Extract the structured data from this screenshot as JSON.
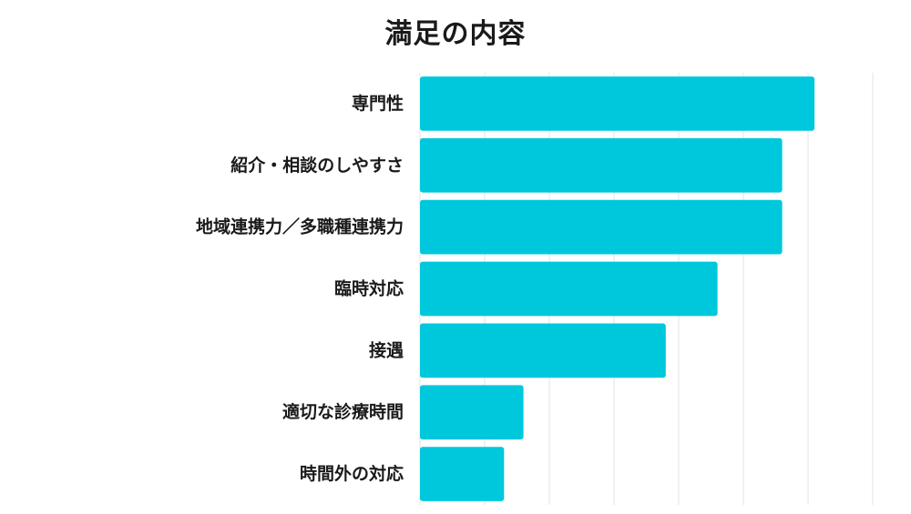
{
  "chart_data": {
    "type": "bar",
    "orientation": "horizontal",
    "title": "満足の内容",
    "categories": [
      "専門性",
      "紹介・相談のしやすさ",
      "地域連携力／多職種連携力",
      "臨時対応",
      "接遇",
      "適切な診療時間",
      "時間外の対応"
    ],
    "values": [
      61,
      56,
      56,
      46,
      38,
      16,
      13
    ],
    "xlim": [
      0,
      70
    ],
    "grid": true,
    "bar_color": "#00c8dc",
    "grid_color": "#e3e3e3"
  }
}
